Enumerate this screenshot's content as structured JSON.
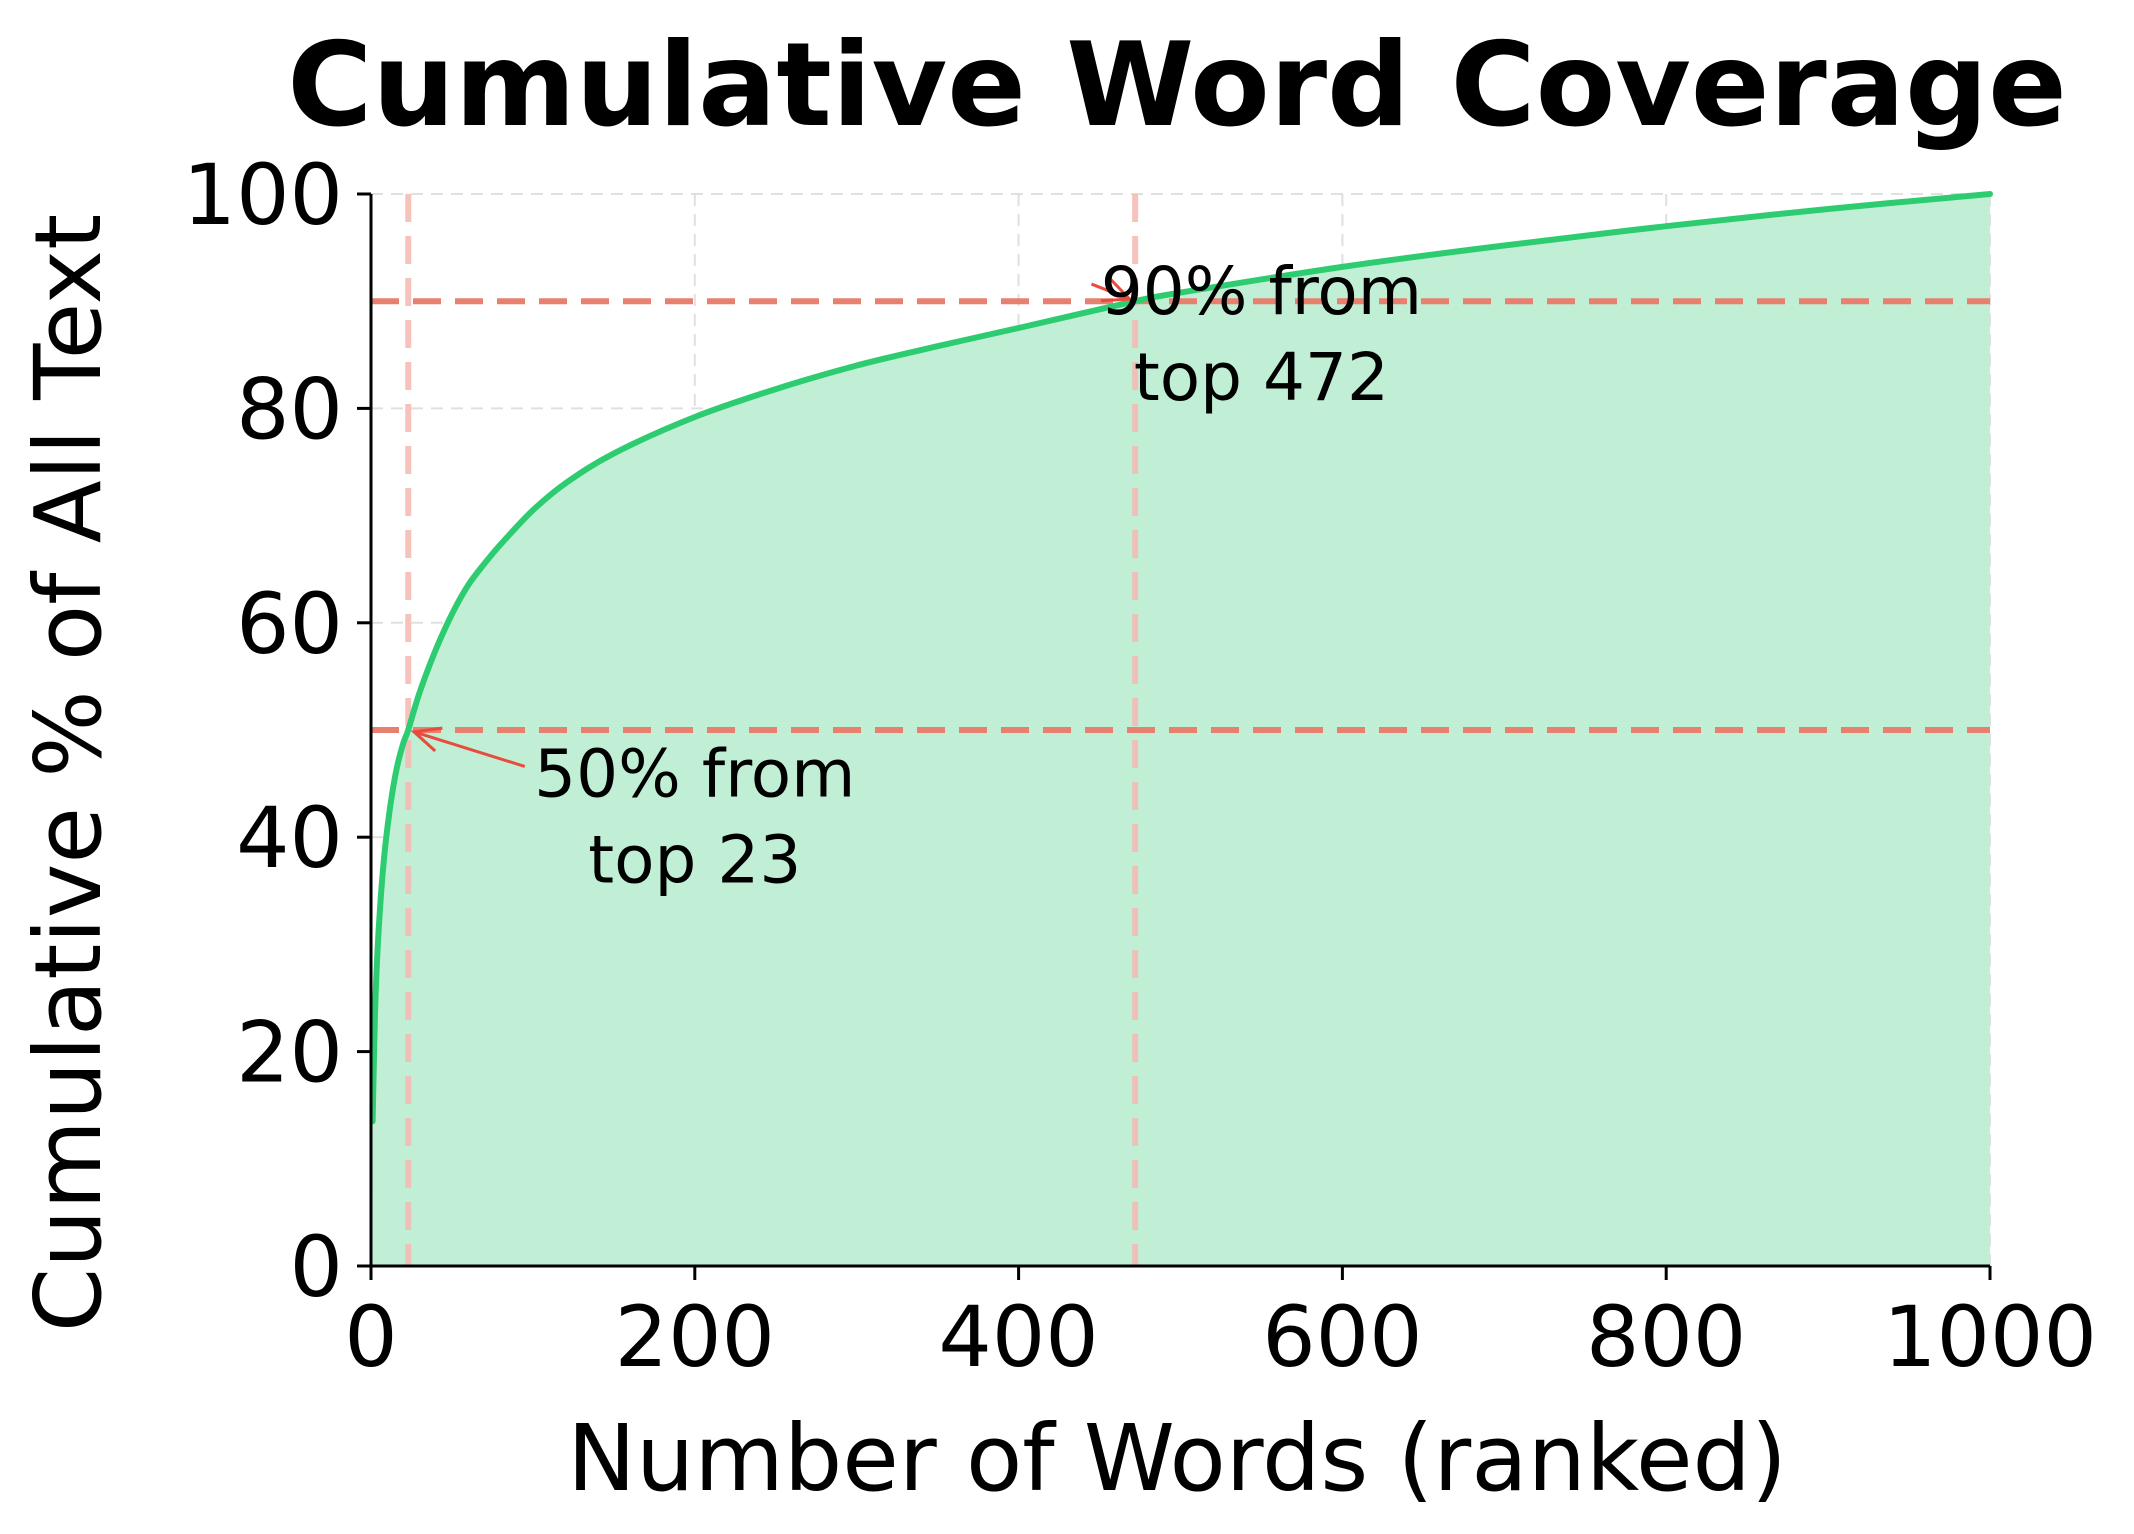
{
  "chart_data": {
    "type": "area",
    "title": "Cumulative Word Coverage",
    "xlabel": "Number of Words (ranked)",
    "ylabel": "Cumulative % of All Text",
    "xlim": [
      0,
      1000
    ],
    "ylim": [
      0,
      100
    ],
    "x_ticks": [
      0,
      200,
      400,
      600,
      800,
      1000
    ],
    "y_ticks": [
      0,
      20,
      40,
      60,
      80,
      100
    ],
    "x_tick_labels": [
      "0",
      "200",
      "400",
      "600",
      "800",
      "1000"
    ],
    "y_tick_labels": [
      "0",
      "20",
      "40",
      "60",
      "80",
      "100"
    ],
    "grid": true,
    "series": [
      {
        "x": [
          1,
          2,
          3,
          5,
          8,
          12,
          16,
          20,
          23,
          30,
          40,
          50,
          60,
          70,
          80,
          100,
          120,
          150,
          200,
          250,
          300,
          350,
          400,
          472,
          500,
          600,
          700,
          800,
          900,
          1000
        ],
        "y": [
          13.5,
          20.5,
          26,
          32,
          38,
          43,
          46.5,
          48.8,
          50,
          53.5,
          57.5,
          60.8,
          63.5,
          65.5,
          67.3,
          70.5,
          73,
          75.8,
          79.2,
          81.8,
          84,
          85.8,
          87.5,
          90,
          90.8,
          93.2,
          95.2,
          97,
          98.6,
          100
        ],
        "color": "#2ecc71",
        "fill": "#c1efd6"
      }
    ],
    "reference_lines": [
      {
        "axis": "y",
        "value": 50,
        "color": "#e8806f"
      },
      {
        "axis": "y",
        "value": 90,
        "color": "#e8806f"
      },
      {
        "axis": "x",
        "value": 23,
        "color": "#f5bcb5"
      },
      {
        "axis": "x",
        "value": 472,
        "color": "#f5bcb5"
      }
    ],
    "annotations": [
      {
        "lines": [
          "50% from",
          "top 23"
        ],
        "point": [
          23,
          50
        ],
        "text_pos": [
          200,
          41
        ],
        "color": "#e74c3c"
      },
      {
        "lines": [
          "90% from",
          "top 472"
        ],
        "point": [
          472,
          90
        ],
        "text_pos": [
          550,
          86
        ],
        "color": "#e74c3c"
      }
    ]
  }
}
